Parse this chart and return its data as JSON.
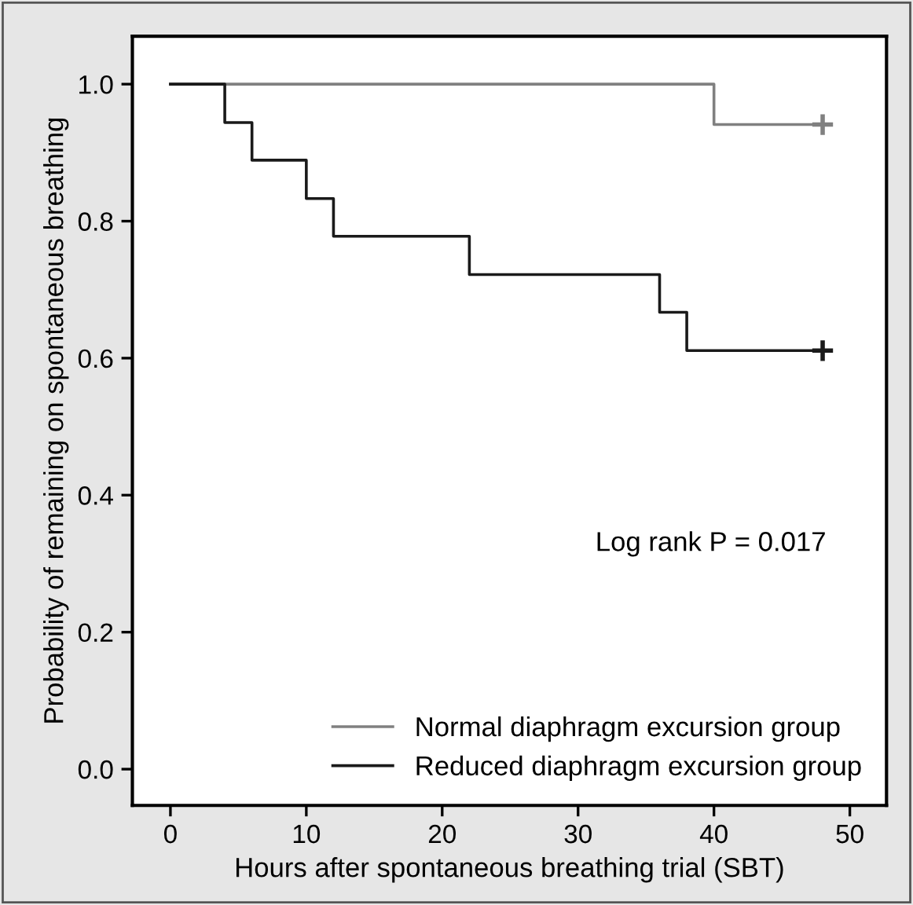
{
  "chart_data": {
    "type": "step",
    "xlabel": "Hours after spontaneous breathing trial (SBT)",
    "ylabel": "Probability of remaining on spontaneous breathing",
    "annotations": [
      "Log rank P = 0.017"
    ],
    "series": [
      {
        "name": "Normal diaphragm excursion group",
        "color": "#808080",
        "x": [
          0,
          40,
          48
        ],
        "values": [
          1.0,
          0.941,
          0.941
        ]
      },
      {
        "name": "Reduced diaphragm excursion group",
        "color": "#1a1a1a",
        "x": [
          0,
          4,
          6,
          10,
          12,
          22,
          36,
          38,
          48
        ],
        "values": [
          1.0,
          0.944,
          0.889,
          0.833,
          0.778,
          0.722,
          0.667,
          0.611,
          0.611
        ]
      },
      {
        "type": "scatter",
        "marker": "cross",
        "color": "#808080",
        "x": [
          48
        ],
        "values": [
          0.941
        ]
      },
      {
        "type": "scatter",
        "marker": "cross",
        "color": "#1a1a1a",
        "x": [
          48
        ],
        "values": [
          0.611
        ]
      }
    ],
    "xlim": [
      -2.8,
      52.7
    ],
    "xticks": [
      0,
      10,
      20,
      30,
      40,
      50
    ],
    "ylim": [
      -0.053,
      1.07
    ],
    "yticks": [
      {
        "value": 0,
        "label": "0.0"
      },
      {
        "value": 0.2,
        "label": "0.2"
      },
      {
        "value": 0.4,
        "label": "0.4"
      },
      {
        "value": 0.6,
        "label": "0.6"
      },
      {
        "value": 0.8,
        "label": "0.8"
      },
      {
        "value": 1,
        "label": "1.0"
      }
    ],
    "legend": "bottom right",
    "grid": false
  }
}
